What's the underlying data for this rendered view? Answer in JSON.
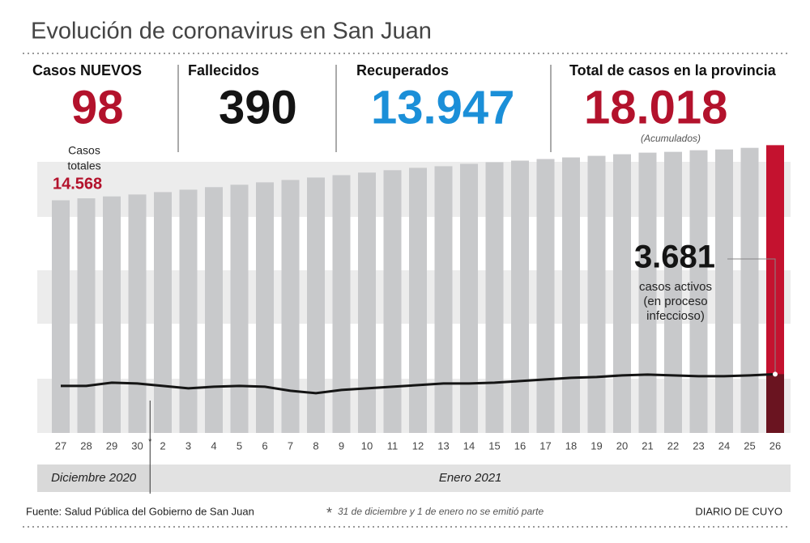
{
  "title": "Evolución de coronavirus en San Juan",
  "stats": [
    {
      "label": "Casos NUEVOS",
      "value": "98",
      "color": "#b3122c"
    },
    {
      "label": "Fallecidos",
      "value": "390",
      "color": "#141414"
    },
    {
      "label": "Recuperados",
      "value": "13.947",
      "color": "#1b8fd8"
    },
    {
      "label": "Total de casos en la provincia",
      "value": "18.018",
      "color": "#b3122c",
      "note": "(Acumulados)"
    }
  ],
  "chart_data": {
    "type": "bar",
    "categories": [
      "27",
      "28",
      "29",
      "30",
      "2",
      "3",
      "4",
      "5",
      "6",
      "7",
      "8",
      "9",
      "10",
      "11",
      "12",
      "13",
      "14",
      "15",
      "16",
      "17",
      "18",
      "19",
      "20",
      "21",
      "22",
      "23",
      "24",
      "25",
      "26"
    ],
    "values": [
      14568,
      14690,
      14810,
      14930,
      15080,
      15230,
      15390,
      15540,
      15690,
      15840,
      15990,
      16140,
      16300,
      16450,
      16600,
      16700,
      16850,
      16950,
      17050,
      17150,
      17250,
      17350,
      17450,
      17550,
      17600,
      17700,
      17750,
      17850,
      18018
    ],
    "value_labels": [
      "14.568",
      null,
      null,
      null,
      null,
      null,
      null,
      null,
      null,
      null,
      null,
      null,
      null,
      null,
      null,
      null,
      null,
      null,
      null,
      null,
      null,
      null,
      null,
      null,
      null,
      null,
      null,
      null,
      null
    ],
    "color": "#c8c9cb",
    "highlight_color": "#c4122f",
    "first_label_lines": [
      "Casos",
      "totales"
    ],
    "line": {
      "color": "#151515",
      "fill_color": "#6a1420",
      "values": [
        2944,
        2944,
        3147,
        3096,
        2944,
        2792,
        2893,
        2944,
        2893,
        2640,
        2487,
        2690,
        2792,
        2893,
        2995,
        3096,
        3096,
        3147,
        3249,
        3350,
        3452,
        3503,
        3604,
        3655,
        3604,
        3553,
        3553,
        3604,
        3681
      ],
      "value_labels": [
        null,
        null,
        null,
        null,
        null,
        null,
        null,
        null,
        null,
        null,
        null,
        null,
        null,
        null,
        null,
        null,
        null,
        null,
        null,
        null,
        null,
        null,
        null,
        null,
        null,
        null,
        null,
        null,
        "3.681"
      ],
      "label_lines": [
        "casos activos",
        "(en proceso",
        "infeccioso)"
      ]
    },
    "ylim": [
      0,
      19000
    ],
    "months": [
      "Diciembre 2020",
      "Enero 2021"
    ]
  },
  "footer": {
    "source": "Fuente: Salud Pública del Gobierno de San Juan",
    "note": "31 de diciembre y 1 de enero no se emitió parte",
    "brand": "DIARIO DE CUYO"
  }
}
